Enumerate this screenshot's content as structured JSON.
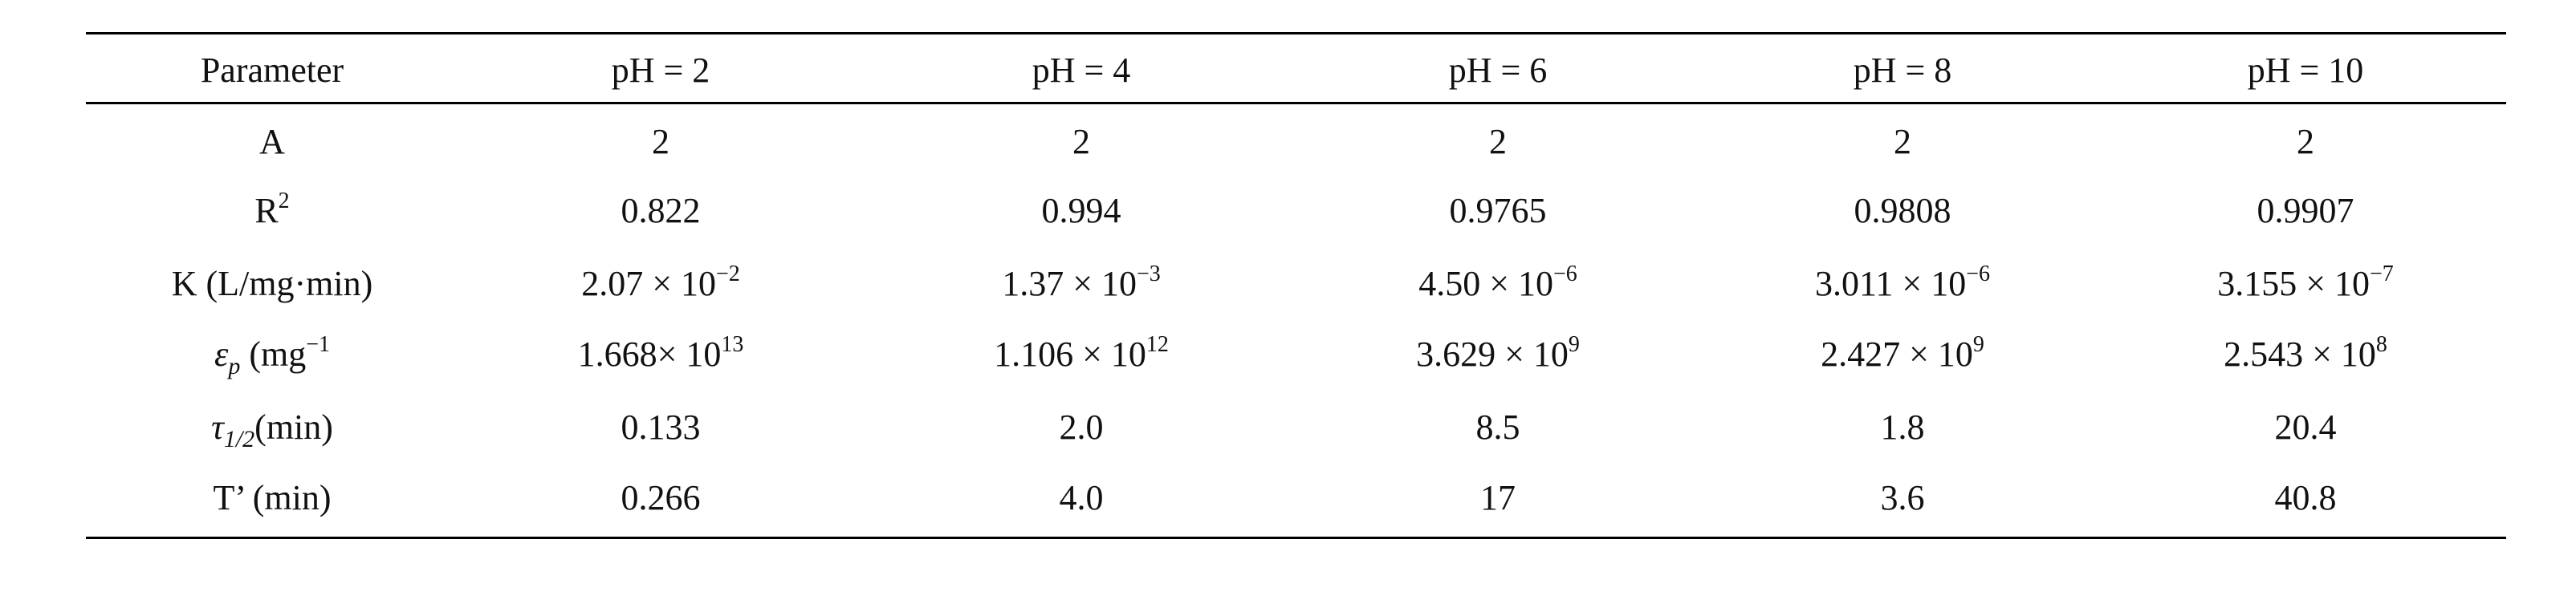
{
  "table": {
    "header": [
      "Parameter",
      "pH = 2",
      "pH = 4",
      "pH = 6",
      "pH = 8",
      "pH = 10"
    ],
    "rows": [
      [
        [
          {
            "text": "A"
          }
        ],
        "2",
        "2",
        "2",
        "2",
        "2"
      ],
      [
        [
          {
            "text": "R"
          },
          {
            "sup": "2"
          }
        ],
        "0.822",
        "0.994",
        "0.9765",
        "0.9808",
        "0.9907"
      ],
      [
        [
          {
            "text": "K (L/mg·min)"
          }
        ],
        [
          {
            "text": "2.07 × 10"
          },
          {
            "sup": "−2"
          }
        ],
        [
          {
            "text": "1.37 × 10"
          },
          {
            "sup": "−3"
          }
        ],
        [
          {
            "text": "4.50 × 10"
          },
          {
            "sup": "−6"
          }
        ],
        [
          {
            "text": "3.011 × 10"
          },
          {
            "sup": "−6"
          }
        ],
        [
          {
            "text": "3.155 × 10"
          },
          {
            "sup": "−7"
          }
        ]
      ],
      [
        [
          {
            "italic": "ε"
          },
          {
            "sub": "p"
          },
          {
            "text": " (mg"
          },
          {
            "sup": "−1"
          }
        ],
        [
          {
            "text": "1.668× 10"
          },
          {
            "sup": "13"
          }
        ],
        [
          {
            "text": "1.106 × 10"
          },
          {
            "sup": "12"
          }
        ],
        [
          {
            "text": "3.629 × 10"
          },
          {
            "sup": "9"
          }
        ],
        [
          {
            "text": "2.427 × 10"
          },
          {
            "sup": "9"
          }
        ],
        [
          {
            "text": "2.543 × 10"
          },
          {
            "sup": "8"
          }
        ]
      ],
      [
        [
          {
            "italic": "τ"
          },
          {
            "sub": "1/2"
          },
          {
            "text": "(min)"
          }
        ],
        "0.133",
        "2.0",
        "8.5",
        "1.8",
        "20.4"
      ],
      [
        [
          {
            "text": "T’ (min)"
          }
        ],
        "0.266",
        "4.0",
        "17",
        "3.6",
        "40.8"
      ]
    ]
  }
}
